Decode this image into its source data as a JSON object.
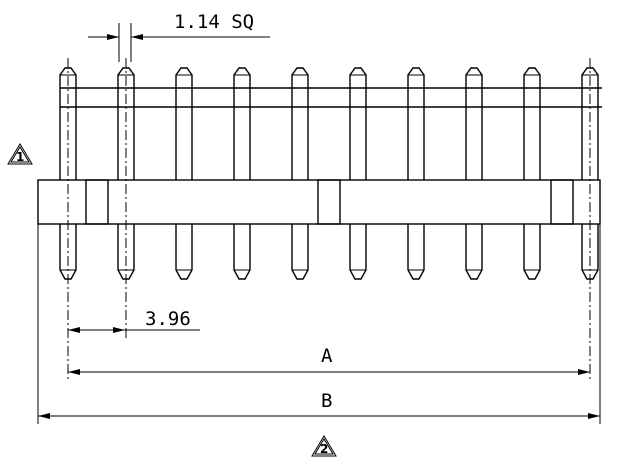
{
  "dimensions": {
    "pin_size_label": "1.14 SQ",
    "pitch_label": "3.96",
    "a_label": "A",
    "b_label": "B"
  },
  "notes": {
    "note_1": "1",
    "note_2": "2"
  },
  "pin_count": 10
}
